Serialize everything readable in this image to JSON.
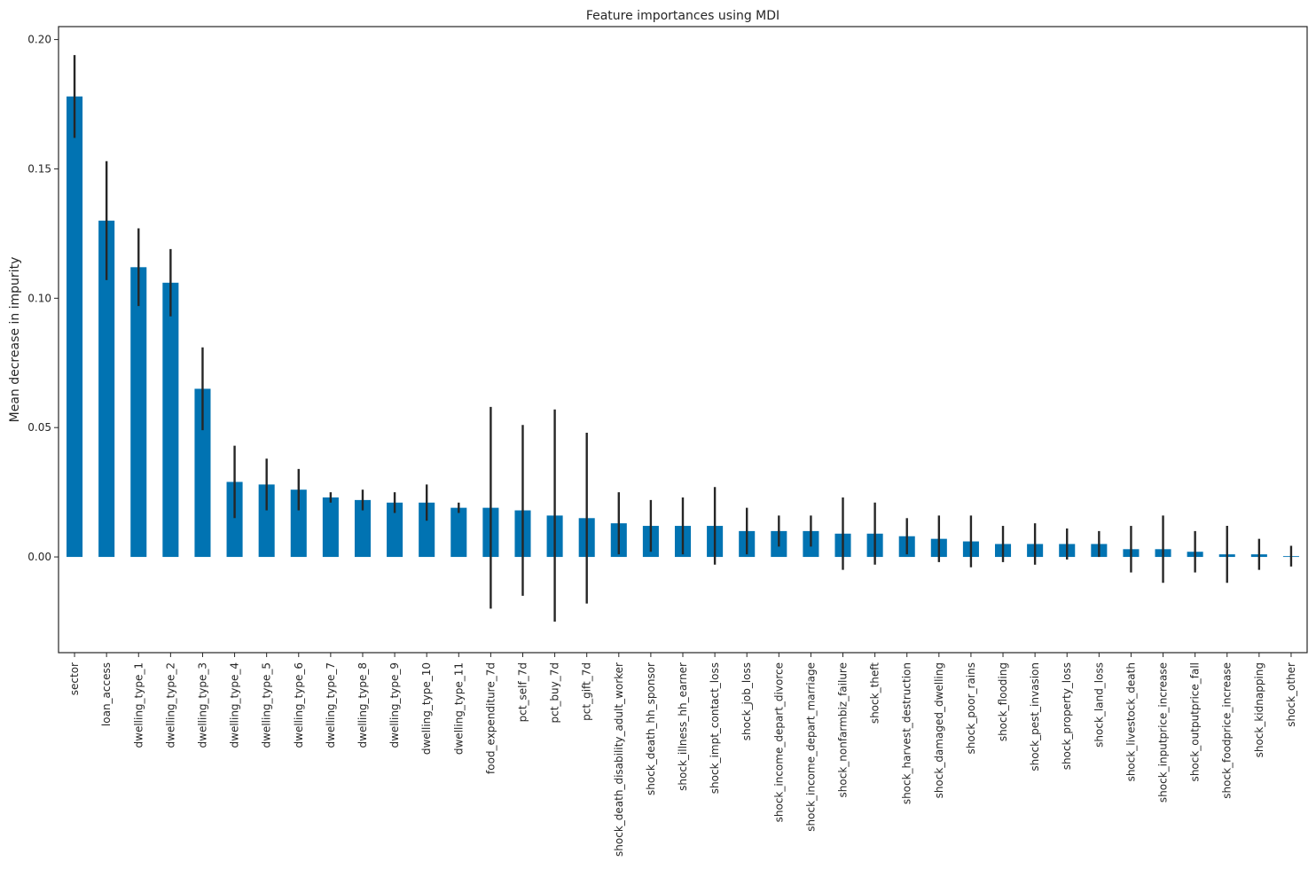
{
  "chart_data": {
    "type": "bar",
    "title": "Feature importances using MDI",
    "xlabel": "",
    "ylabel": "Mean decrease in impurity",
    "ylim": [
      -0.037,
      0.205
    ],
    "yticks": [
      0.0,
      0.05,
      0.1,
      0.15,
      0.2
    ],
    "ytick_labels": [
      "0.00",
      "0.05",
      "0.10",
      "0.15",
      "0.20"
    ],
    "grid": false,
    "bar_color": "#0173b2",
    "error_color": "#262626",
    "categories": [
      "sector",
      "loan_access",
      "dwelling_type_1",
      "dwelling_type_2",
      "dwelling_type_3",
      "dwelling_type_4",
      "dwelling_type_5",
      "dwelling_type_6",
      "dwelling_type_7",
      "dwelling_type_8",
      "dwelling_type_9",
      "dwelling_type_10",
      "dwelling_type_11",
      "food_expenditure_7d",
      "pct_self_7d",
      "pct_buy_7d",
      "pct_gift_7d",
      "shock_death_disability_adult_worker",
      "shock_death_hh_sponsor",
      "shock_illness_hh_earner",
      "shock_impt_contact_loss",
      "shock_job_loss",
      "shock_income_depart_divorce",
      "shock_income_depart_marriage",
      "shock_nonfarmbiz_failure",
      "shock_theft",
      "shock_harvest_destruction",
      "shock_damaged_dwelling",
      "shock_poor_rains",
      "shock_flooding",
      "shock_pest_invasion",
      "shock_property_loss",
      "shock_land_loss",
      "shock_livestock_death",
      "shock_inputprice_increase",
      "shock_outputprice_fall",
      "shock_foodprice_increase",
      "shock_kidnapping",
      "shock_other"
    ],
    "values": [
      0.178,
      0.13,
      0.112,
      0.106,
      0.065,
      0.029,
      0.028,
      0.026,
      0.023,
      0.022,
      0.021,
      0.021,
      0.019,
      0.019,
      0.018,
      0.016,
      0.015,
      0.013,
      0.012,
      0.012,
      0.012,
      0.01,
      0.01,
      0.01,
      0.009,
      0.009,
      0.008,
      0.007,
      0.006,
      0.005,
      0.005,
      0.005,
      0.005,
      0.003,
      0.003,
      0.002,
      0.001,
      0.001,
      0.0003
    ],
    "errors": [
      0.016,
      0.023,
      0.015,
      0.013,
      0.016,
      0.014,
      0.01,
      0.008,
      0.002,
      0.004,
      0.004,
      0.007,
      0.002,
      0.039,
      0.033,
      0.041,
      0.033,
      0.012,
      0.01,
      0.011,
      0.015,
      0.009,
      0.006,
      0.006,
      0.014,
      0.012,
      0.007,
      0.009,
      0.01,
      0.007,
      0.008,
      0.006,
      0.005,
      0.009,
      0.013,
      0.008,
      0.011,
      0.006,
      0.004
    ]
  }
}
